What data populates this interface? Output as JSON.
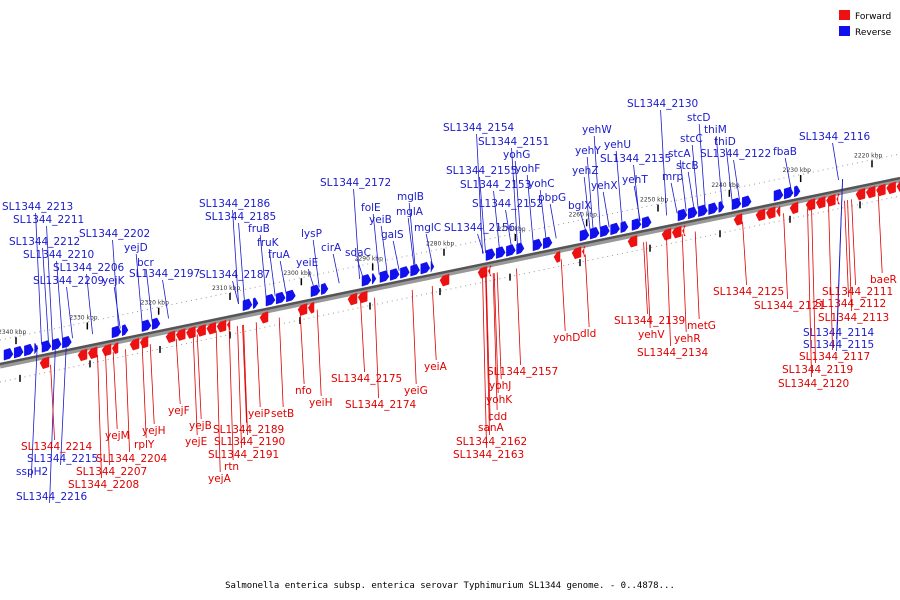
{
  "legend": [
    {
      "label": "Forward",
      "color": "#ee1111"
    },
    {
      "label": "Reverse",
      "color": "#1111ee"
    }
  ],
  "caption": "Salmonella enterica subsp. enterica serovar Typhimurium SL1344 genome. - 0..4878...",
  "ticks": [
    "2220 kbp",
    "2230 kbp",
    "2240 kbp",
    "2250 kbp",
    "2260 kbp",
    "2270 kbp",
    "2280 kbp",
    "2290 kbp",
    "2300 kbp",
    "2310 kbp",
    "2320 kbp",
    "2330 kbp",
    "2340 kbp"
  ],
  "reverse_genes": [
    "SL1344_2130",
    "stcD",
    "thiM",
    "stcC",
    "thiD",
    "stcA",
    "SL1344_2122",
    "stcB",
    "mrp",
    "fbaB",
    "SL1344_2116",
    "yehW",
    "yehU",
    "yehY",
    "SL1344_2135",
    "yehZ",
    "yehT",
    "yehX",
    "bglX",
    "SL1344_2154",
    "SL1344_2151",
    "yohG",
    "yohF",
    "SL1344_2155",
    "yohC",
    "SL1344_2153",
    "pbpG",
    "SL1344_2152",
    "SL1344_2156",
    "SL1344_2172",
    "mglB",
    "folE",
    "mglA",
    "yeiB",
    "galS",
    "mglC",
    "sdaC",
    "lysP",
    "cirA",
    "yeiE",
    "SL1344_2186",
    "SL1344_2185",
    "fruB",
    "fruK",
    "fruA",
    "SL1344_2187",
    "SL1344_2213",
    "SL1344_2211",
    "SL1344_2212",
    "SL1344_2210",
    "SL1344_2202",
    "yejD",
    "SL1344_2206",
    "SL1344_2209",
    "yejK",
    "bcr",
    "SL1344_2197",
    "SL1344_2215",
    "sspH2",
    "SL1344_2216",
    "SL1344_2114",
    "SL1344_2115"
  ],
  "forward_genes": [
    "baeR",
    "SL1344_2111",
    "SL1344_2112",
    "SL1344_2113",
    "SL1344_2125",
    "SL1344_2121",
    "SL1344_2117",
    "SL1344_2119",
    "SL1344_2120",
    "SL1344_2139",
    "yehV",
    "metG",
    "yehR",
    "SL1344_2134",
    "yohD",
    "dld",
    "SL1344_2157",
    "yohJ",
    "yohK",
    "cdd",
    "sanA",
    "SL1344_2162",
    "SL1344_2163",
    "yeiA",
    "yeiG",
    "SL1344_2175",
    "SL1344_2174",
    "nfo",
    "yeiH",
    "yejF",
    "yejB",
    "yejE",
    "SL1344_2189",
    "SL1344_2190",
    "SL1344_2191",
    "rtn",
    "yejA",
    "yeiP",
    "setB",
    "yejM",
    "rplY",
    "yejH",
    "SL1344_2214",
    "SL1344_2204",
    "SL1344_2207",
    "SL1344_2208"
  ]
}
